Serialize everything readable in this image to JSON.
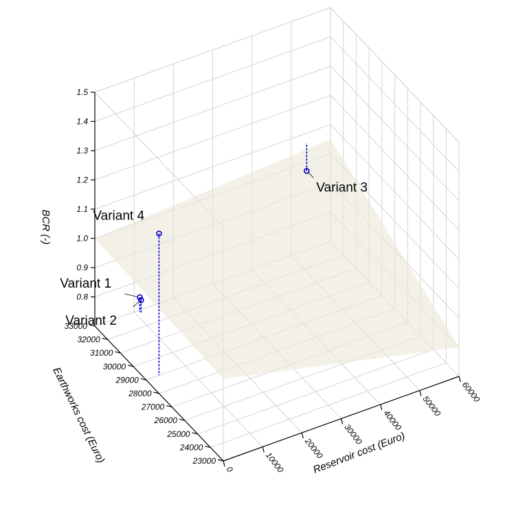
{
  "chart_data": {
    "type": "scatter",
    "variant": "3d-scatter-with-fitted-plane",
    "title": "",
    "xlabel": "Reservoir cost (Euro)",
    "ylabel": "Earthworks cost (Euro)",
    "zlabel": "BCR (-)",
    "x_ticks": [
      "0",
      "10000",
      "20000",
      "30000",
      "40000",
      "50000",
      "60000"
    ],
    "y_ticks": [
      "23000",
      "24000",
      "25000",
      "26000",
      "27000",
      "28000",
      "29000",
      "30000",
      "31000",
      "32000",
      "33000"
    ],
    "z_ticks": [
      "0.8",
      "0.9",
      "1.0",
      "1.1",
      "1.2",
      "1.3",
      "1.4",
      "1.5"
    ],
    "xlim": [
      0,
      60000
    ],
    "ylim": [
      23000,
      33000
    ],
    "zlim": [
      0.7,
      1.5
    ],
    "grid": true,
    "surface": "fitted plane",
    "points": [
      {
        "label": "Variant 1",
        "x": 0,
        "y": 29500,
        "z": 0.96
      },
      {
        "label": "Variant 2",
        "x": 0,
        "y": 29400,
        "z": 0.955
      },
      {
        "label": "Variant 4",
        "x": 7500,
        "y": 30300,
        "z": 1.105
      },
      {
        "label": "Variant 3",
        "x": 50000,
        "y": 31800,
        "z": 1.045
      }
    ],
    "colors": {
      "points": "#0000cc",
      "plane": "#ece8d9",
      "grid": "#d3d3d3"
    }
  }
}
